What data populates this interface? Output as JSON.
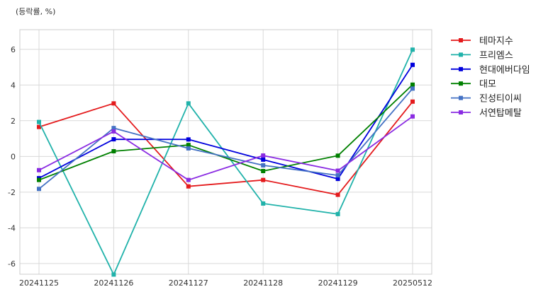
{
  "chart_data": {
    "type": "line",
    "title": "",
    "unit_label": "(등락률, %)",
    "xlabel": "",
    "ylabel": "",
    "categories": [
      "20241125",
      "20241126",
      "20241127",
      "20241128",
      "20241129",
      "20250512"
    ],
    "ylim": [
      -6.6,
      7.1
    ],
    "yticks": [
      -6,
      -4,
      -2,
      0,
      2,
      4,
      6
    ],
    "grid": true,
    "legend_position": "outside-right",
    "series": [
      {
        "name": "테마지수",
        "color": "#e41a1c",
        "values": [
          1.65,
          2.97,
          -1.68,
          -1.32,
          -2.15,
          3.07
        ]
      },
      {
        "name": "프리엠스",
        "color": "#20b2aa",
        "values": [
          1.93,
          -6.62,
          2.97,
          -2.64,
          -3.23,
          5.98
        ]
      },
      {
        "name": "현대에버다임",
        "color": "#0000dd",
        "values": [
          -1.22,
          0.96,
          0.95,
          -0.18,
          -1.26,
          5.13
        ]
      },
      {
        "name": "대모",
        "color": "#008000",
        "values": [
          -1.32,
          0.29,
          0.64,
          -0.82,
          0.04,
          4.02
        ]
      },
      {
        "name": "진성티이씨",
        "color": "#4472c4",
        "values": [
          -1.82,
          1.59,
          0.45,
          -0.5,
          -1.06,
          3.8
        ]
      },
      {
        "name": "서연탑메탈",
        "color": "#8a2be2",
        "values": [
          -0.77,
          1.4,
          -1.32,
          0.05,
          -0.8,
          2.24
        ]
      }
    ]
  }
}
